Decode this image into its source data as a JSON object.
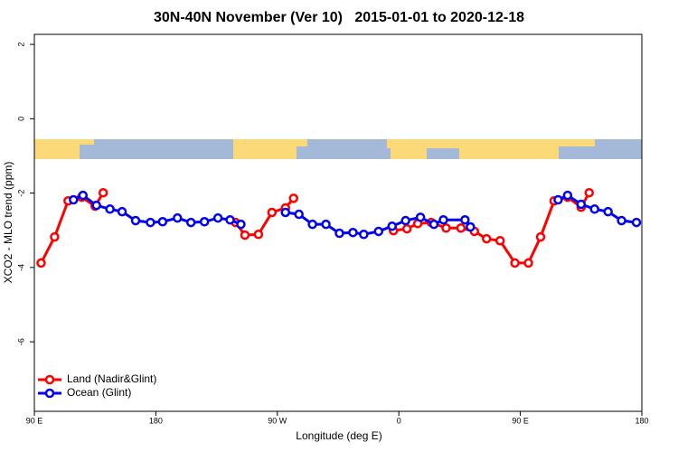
{
  "chart_data": {
    "type": "line",
    "title": "30N-40N November (Ver 10)   2015-01-01 to 2020-12-18",
    "xlabel": "Longitude (deg E)",
    "ylabel": "XCO2 - MLO trend (ppm)",
    "xlim": [
      90,
      540
    ],
    "xticks": [
      {
        "value": 90,
        "label": "90 E"
      },
      180,
      {
        "value": 270,
        "label": "90 W"
      },
      {
        "value": 360,
        "label": "0"
      },
      {
        "value": 450,
        "label": "90 E"
      },
      {
        "value": 540,
        "label": "180"
      }
    ],
    "ylim": [
      -7.87,
      2.27
    ],
    "yticks": [
      2,
      0,
      -2,
      -4,
      -6
    ],
    "legend": "bottomleft",
    "series": [
      {
        "name": "Land (Nadir&Glint)",
        "color": "#ff0000",
        "x": [
          95,
          105,
          115,
          125,
          135,
          141,
          null,
          239,
          246,
          256,
          266,
          276,
          282,
          null,
          356,
          366,
          374,
          384,
          395,
          406,
          416,
          425,
          435,
          446,
          456,
          465,
          475,
          485,
          495,
          501
        ],
        "values": [
          -3.88,
          -3.18,
          -2.21,
          -2.11,
          -2.35,
          -1.99,
          null,
          -2.79,
          -3.13,
          -3.11,
          -2.52,
          -2.4,
          -2.14,
          null,
          -3.01,
          -2.96,
          -2.82,
          -2.79,
          -2.94,
          -2.94,
          -3.03,
          -3.23,
          -3.28,
          -3.88,
          -3.88,
          -3.18,
          -2.21,
          -2.11,
          -2.38,
          -1.99
        ]
      },
      {
        "name": "Ocean (Glint)",
        "color": "#0000ee",
        "x": [
          119,
          126,
          136,
          146,
          155,
          165,
          176,
          185,
          196,
          206,
          216,
          226,
          235,
          243,
          null,
          276,
          286,
          296,
          306,
          316,
          326,
          334,
          345,
          355,
          365,
          376,
          386,
          393,
          409,
          413,
          null,
          478,
          485,
          495,
          505,
          515,
          525,
          536
        ],
        "values": [
          -2.18,
          -2.06,
          -2.33,
          -2.43,
          -2.5,
          -2.74,
          -2.79,
          -2.77,
          -2.67,
          -2.79,
          -2.77,
          -2.67,
          -2.72,
          -2.84,
          null,
          -2.52,
          -2.57,
          -2.84,
          -2.84,
          -3.08,
          -3.06,
          -3.11,
          -3.03,
          -2.89,
          -2.74,
          -2.65,
          -2.84,
          -2.72,
          -2.72,
          -2.91,
          null,
          -2.18,
          -2.06,
          -2.3,
          -2.43,
          -2.5,
          -2.74,
          -2.79
        ]
      }
    ]
  }
}
